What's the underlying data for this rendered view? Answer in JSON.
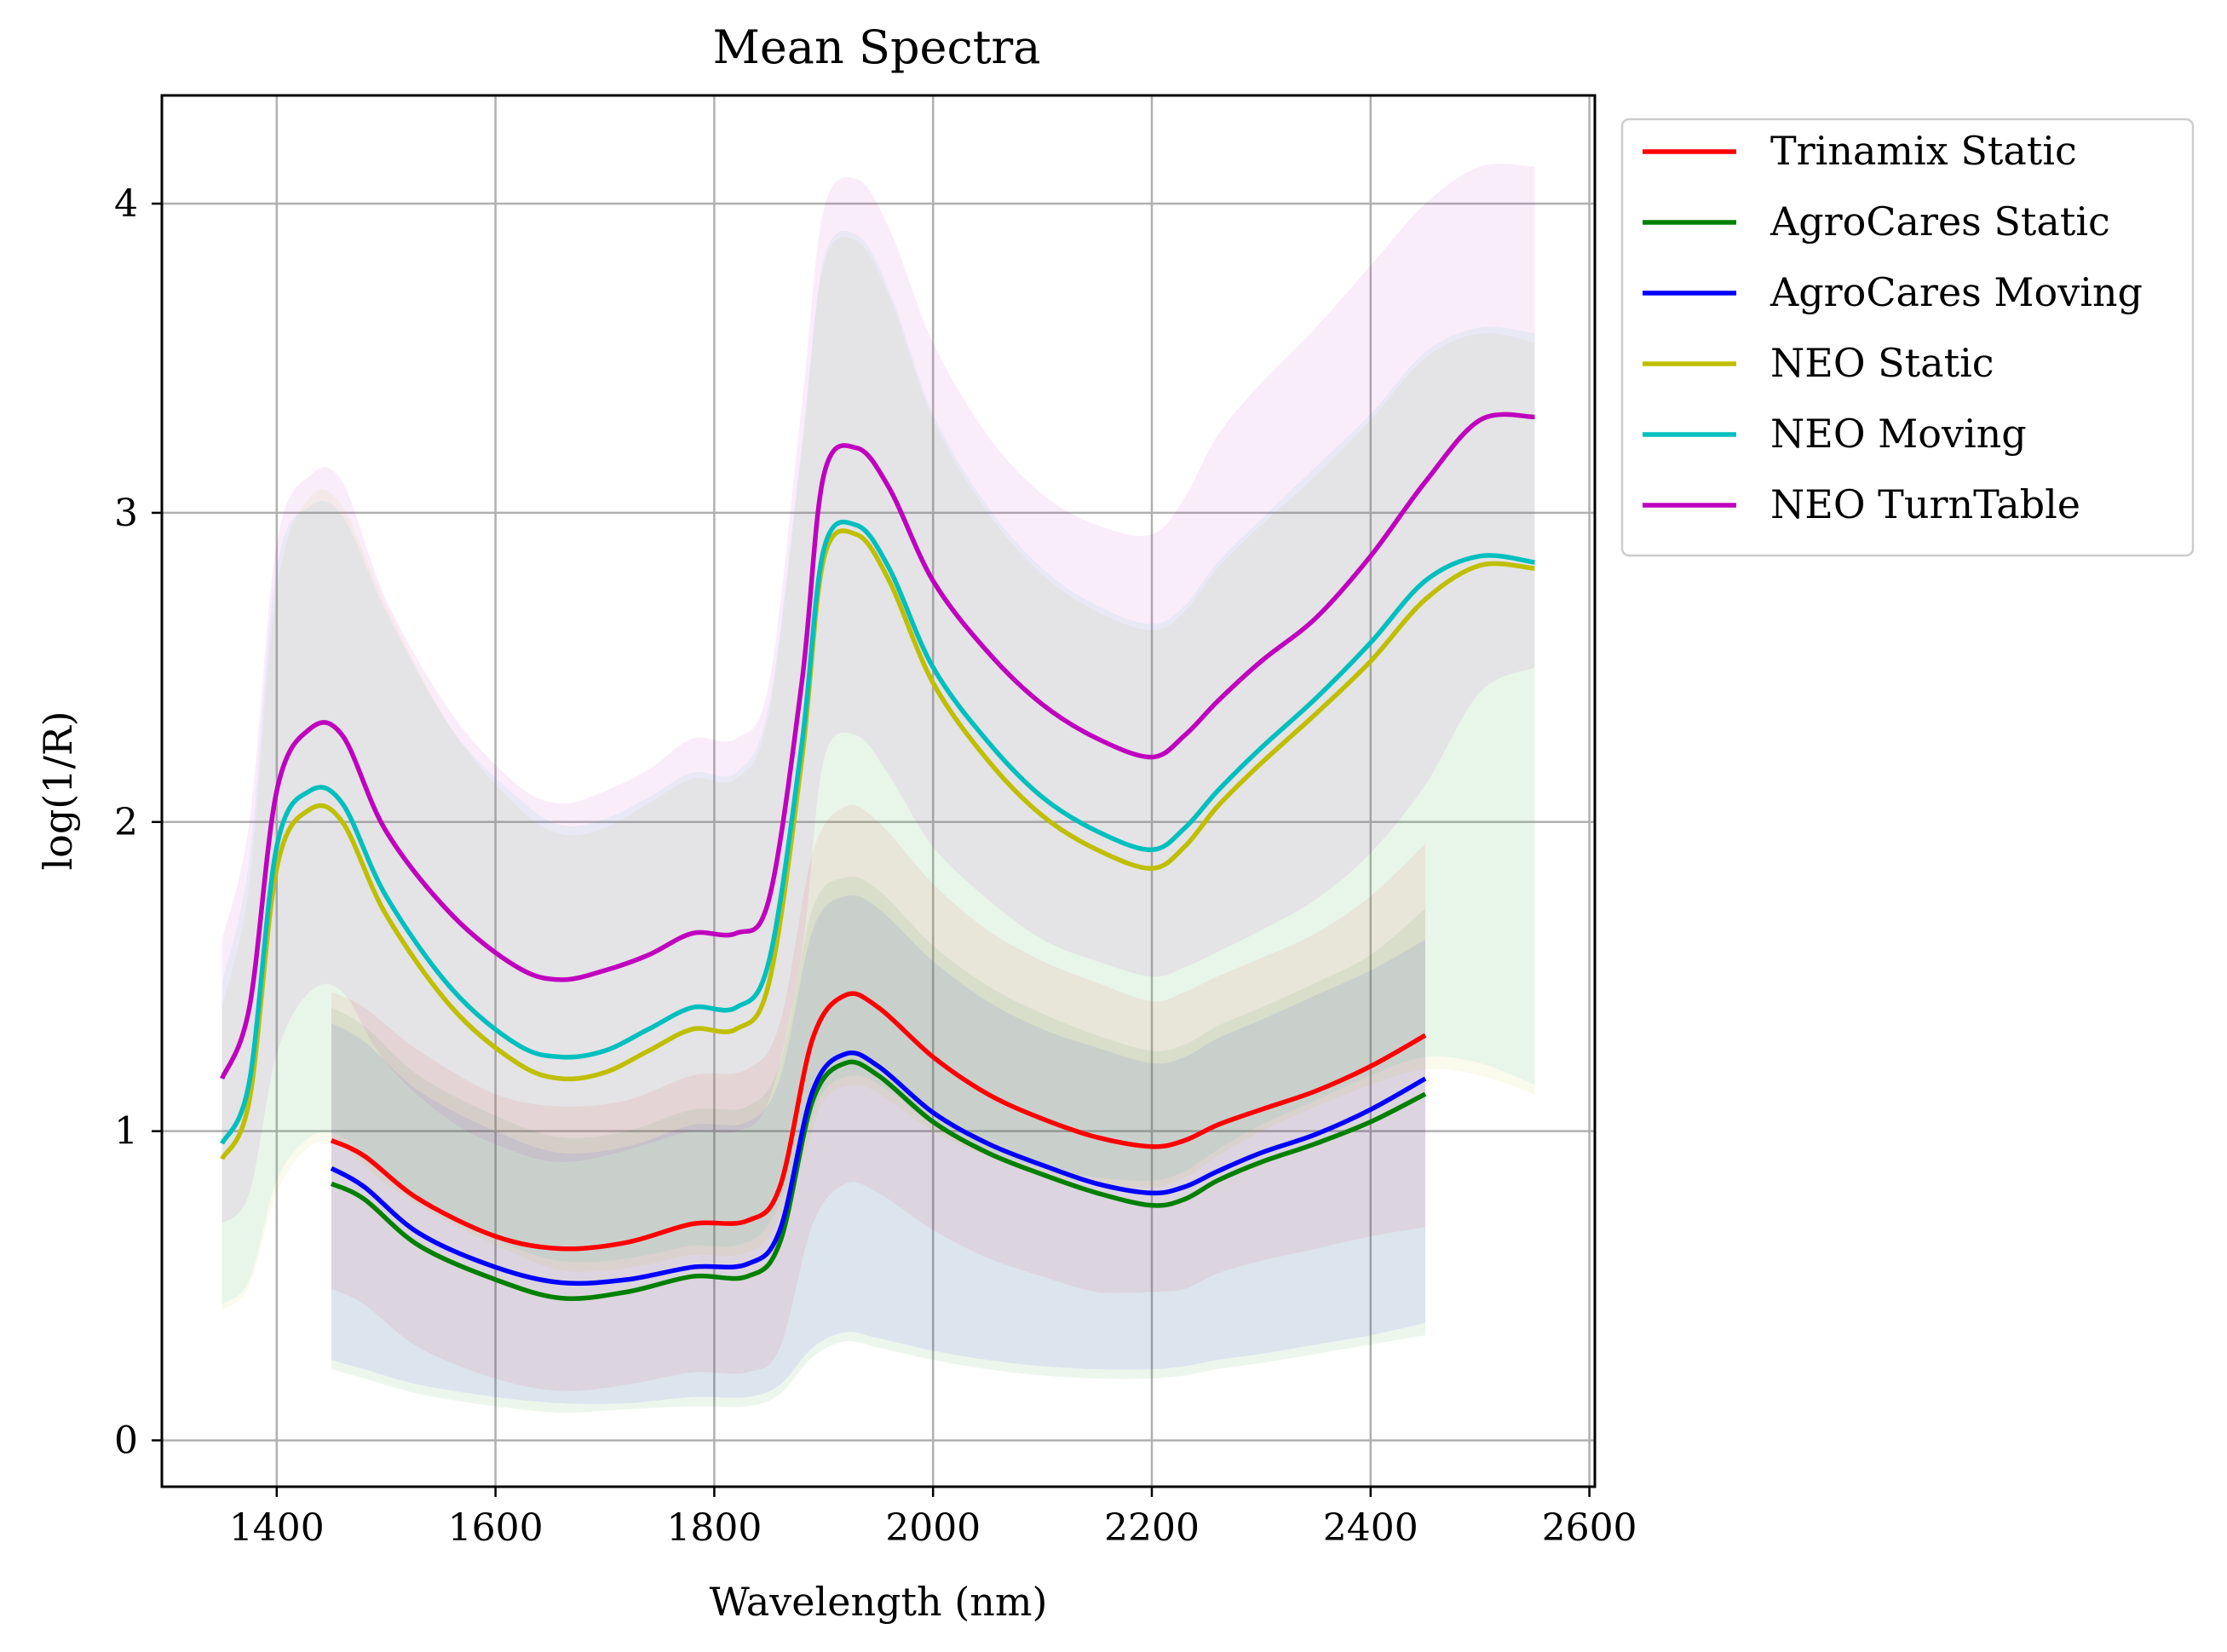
{
  "chart_data": {
    "type": "line",
    "title": "Mean Spectra",
    "xlabel": "Wavelength (nm)",
    "ylabel": "log(1/R)",
    "xlim": [
      1295,
      2605
    ],
    "ylim": [
      -0.15,
      4.35
    ],
    "xticks": [
      1400,
      1600,
      1800,
      2000,
      2200,
      2400,
      2600
    ],
    "yticks": [
      0,
      1,
      2,
      3,
      4
    ],
    "grid": true,
    "legend_position": "outside-right-top",
    "series": [
      {
        "name": "Trinamix Static",
        "color": "#ff0000",
        "x": [
          1450,
          1480,
          1530,
          1600,
          1660,
          1720,
          1780,
          1830,
          1860,
          1890,
          1920,
          1950,
          2000,
          2050,
          2100,
          2150,
          2200,
          2230,
          2260,
          2300,
          2350,
          2400,
          2450
        ],
        "mean": [
          0.97,
          0.92,
          0.78,
          0.66,
          0.62,
          0.64,
          0.7,
          0.71,
          0.82,
          1.3,
          1.44,
          1.4,
          1.24,
          1.12,
          1.04,
          0.98,
          0.95,
          0.97,
          1.02,
          1.07,
          1.13,
          1.21,
          1.31
        ],
        "upper": [
          1.45,
          1.4,
          1.26,
          1.12,
          1.08,
          1.1,
          1.18,
          1.2,
          1.35,
          1.9,
          2.05,
          2.0,
          1.8,
          1.65,
          1.55,
          1.48,
          1.42,
          1.45,
          1.5,
          1.56,
          1.64,
          1.76,
          1.93
        ],
        "lower": [
          0.49,
          0.44,
          0.3,
          0.2,
          0.16,
          0.18,
          0.22,
          0.22,
          0.3,
          0.7,
          0.83,
          0.8,
          0.68,
          0.59,
          0.53,
          0.48,
          0.48,
          0.49,
          0.54,
          0.58,
          0.62,
          0.66,
          0.69
        ]
      },
      {
        "name": "AgroCares Static",
        "color": "#008000",
        "x": [
          1450,
          1480,
          1530,
          1600,
          1660,
          1720,
          1780,
          1830,
          1860,
          1890,
          1920,
          1950,
          2000,
          2050,
          2100,
          2150,
          2200,
          2230,
          2260,
          2300,
          2350,
          2400,
          2450
        ],
        "mean": [
          0.83,
          0.78,
          0.63,
          0.52,
          0.46,
          0.48,
          0.53,
          0.53,
          0.64,
          1.1,
          1.22,
          1.18,
          1.03,
          0.93,
          0.86,
          0.8,
          0.76,
          0.78,
          0.84,
          0.9,
          0.96,
          1.03,
          1.12
        ],
        "upper": [
          1.4,
          1.34,
          1.18,
          1.05,
          0.98,
          1.0,
          1.07,
          1.08,
          1.22,
          1.72,
          1.82,
          1.78,
          1.6,
          1.47,
          1.38,
          1.31,
          1.26,
          1.28,
          1.34,
          1.4,
          1.48,
          1.57,
          1.72
        ],
        "lower": [
          0.23,
          0.2,
          0.15,
          0.11,
          0.09,
          0.1,
          0.11,
          0.11,
          0.15,
          0.27,
          0.32,
          0.3,
          0.26,
          0.23,
          0.21,
          0.2,
          0.2,
          0.21,
          0.23,
          0.25,
          0.28,
          0.31,
          0.34
        ]
      },
      {
        "name": "AgroCares Moving",
        "color": "#0000ff",
        "x": [
          1450,
          1480,
          1530,
          1600,
          1660,
          1720,
          1780,
          1830,
          1860,
          1890,
          1920,
          1950,
          2000,
          2050,
          2100,
          2150,
          2200,
          2230,
          2260,
          2300,
          2350,
          2400,
          2450
        ],
        "mean": [
          0.88,
          0.82,
          0.67,
          0.56,
          0.51,
          0.52,
          0.56,
          0.57,
          0.68,
          1.13,
          1.25,
          1.21,
          1.06,
          0.96,
          0.89,
          0.83,
          0.8,
          0.82,
          0.87,
          0.93,
          0.99,
          1.07,
          1.17
        ],
        "upper": [
          1.35,
          1.29,
          1.13,
          1.0,
          0.93,
          0.95,
          1.02,
          1.03,
          1.17,
          1.65,
          1.76,
          1.72,
          1.55,
          1.42,
          1.33,
          1.27,
          1.22,
          1.24,
          1.3,
          1.36,
          1.44,
          1.52,
          1.62
        ],
        "lower": [
          0.26,
          0.23,
          0.18,
          0.14,
          0.12,
          0.12,
          0.14,
          0.14,
          0.18,
          0.3,
          0.35,
          0.33,
          0.29,
          0.26,
          0.24,
          0.23,
          0.23,
          0.24,
          0.26,
          0.28,
          0.31,
          0.34,
          0.38
        ]
      },
      {
        "name": "NEO Static",
        "color": "#bfbf00",
        "x": [
          1350,
          1375,
          1400,
          1430,
          1460,
          1500,
          1560,
          1620,
          1660,
          1700,
          1740,
          1780,
          1820,
          1850,
          1880,
          1900,
          1930,
          1960,
          2000,
          2050,
          2100,
          2150,
          2200,
          2230,
          2260,
          2300,
          2350,
          2400,
          2450,
          2500,
          2550
        ],
        "mean": [
          0.91,
          1.1,
          1.85,
          2.04,
          2.0,
          1.7,
          1.4,
          1.22,
          1.17,
          1.19,
          1.26,
          1.33,
          1.33,
          1.48,
          2.2,
          2.85,
          2.93,
          2.78,
          2.45,
          2.2,
          2.02,
          1.91,
          1.85,
          1.92,
          2.05,
          2.19,
          2.35,
          2.52,
          2.72,
          2.83,
          2.82
        ],
        "upper": [
          1.4,
          1.8,
          2.75,
          3.05,
          3.02,
          2.7,
          2.3,
          2.05,
          1.96,
          1.98,
          2.06,
          2.14,
          2.14,
          2.35,
          3.2,
          3.8,
          3.88,
          3.7,
          3.3,
          3.0,
          2.8,
          2.68,
          2.62,
          2.68,
          2.82,
          2.96,
          3.12,
          3.3,
          3.5,
          3.58,
          3.55
        ],
        "lower": [
          0.42,
          0.5,
          0.8,
          0.95,
          0.95,
          0.83,
          0.7,
          0.6,
          0.55,
          0.55,
          0.57,
          0.6,
          0.6,
          0.66,
          0.9,
          1.1,
          1.15,
          1.1,
          1.0,
          0.92,
          0.86,
          0.83,
          0.82,
          0.85,
          0.92,
          1.0,
          1.08,
          1.15,
          1.2,
          1.18,
          1.12
        ]
      },
      {
        "name": "NEO Moving",
        "color": "#00bfbf",
        "x": [
          1350,
          1375,
          1400,
          1430,
          1460,
          1500,
          1560,
          1620,
          1660,
          1700,
          1740,
          1780,
          1820,
          1850,
          1880,
          1900,
          1930,
          1960,
          2000,
          2050,
          2100,
          2150,
          2200,
          2230,
          2260,
          2300,
          2350,
          2400,
          2450,
          2500,
          2550
        ],
        "mean": [
          0.96,
          1.16,
          1.92,
          2.1,
          2.06,
          1.76,
          1.46,
          1.28,
          1.24,
          1.26,
          1.33,
          1.4,
          1.4,
          1.55,
          2.25,
          2.88,
          2.96,
          2.82,
          2.5,
          2.26,
          2.08,
          1.97,
          1.91,
          1.98,
          2.1,
          2.24,
          2.4,
          2.58,
          2.78,
          2.86,
          2.84
        ],
        "upper": [
          1.48,
          1.88,
          2.82,
          3.02,
          2.99,
          2.68,
          2.3,
          2.08,
          1.99,
          2.01,
          2.08,
          2.16,
          2.16,
          2.38,
          3.22,
          3.82,
          3.9,
          3.72,
          3.32,
          3.02,
          2.82,
          2.7,
          2.64,
          2.7,
          2.84,
          2.98,
          3.15,
          3.32,
          3.52,
          3.6,
          3.58
        ],
        "lower": [
          0.44,
          0.52,
          0.84,
          0.98,
          0.98,
          0.86,
          0.73,
          0.62,
          0.58,
          0.58,
          0.6,
          0.63,
          0.63,
          0.7,
          0.95,
          1.13,
          1.18,
          1.13,
          1.02,
          0.94,
          0.88,
          0.85,
          0.84,
          0.87,
          0.94,
          1.02,
          1.1,
          1.18,
          1.24,
          1.22,
          1.15
        ]
      },
      {
        "name": "NEO TurnTable",
        "color": "#bf00bf",
        "x": [
          1350,
          1375,
          1400,
          1430,
          1460,
          1500,
          1560,
          1620,
          1660,
          1700,
          1740,
          1780,
          1820,
          1850,
          1880,
          1900,
          1930,
          1960,
          2000,
          2050,
          2100,
          2150,
          2200,
          2230,
          2260,
          2300,
          2350,
          2400,
          2450,
          2500,
          2550
        ],
        "mean": [
          1.17,
          1.4,
          2.1,
          2.3,
          2.28,
          1.97,
          1.7,
          1.53,
          1.49,
          1.52,
          1.57,
          1.64,
          1.64,
          1.75,
          2.45,
          3.12,
          3.21,
          3.08,
          2.78,
          2.55,
          2.38,
          2.27,
          2.21,
          2.28,
          2.39,
          2.52,
          2.66,
          2.86,
          3.1,
          3.3,
          3.31
        ],
        "upper": [
          1.62,
          2.0,
          2.9,
          3.12,
          3.1,
          2.72,
          2.35,
          2.12,
          2.06,
          2.1,
          2.17,
          2.27,
          2.27,
          2.45,
          3.35,
          3.98,
          4.08,
          3.92,
          3.55,
          3.25,
          3.06,
          2.96,
          2.93,
          3.05,
          3.25,
          3.42,
          3.6,
          3.8,
          4.0,
          4.12,
          4.12
        ],
        "lower": [
          0.7,
          0.8,
          1.25,
          1.45,
          1.45,
          1.22,
          1.03,
          0.93,
          0.9,
          0.92,
          0.96,
          1.0,
          1.0,
          1.1,
          1.58,
          2.2,
          2.28,
          2.15,
          1.92,
          1.75,
          1.62,
          1.55,
          1.5,
          1.53,
          1.58,
          1.65,
          1.75,
          1.9,
          2.12,
          2.42,
          2.5
        ]
      }
    ]
  }
}
